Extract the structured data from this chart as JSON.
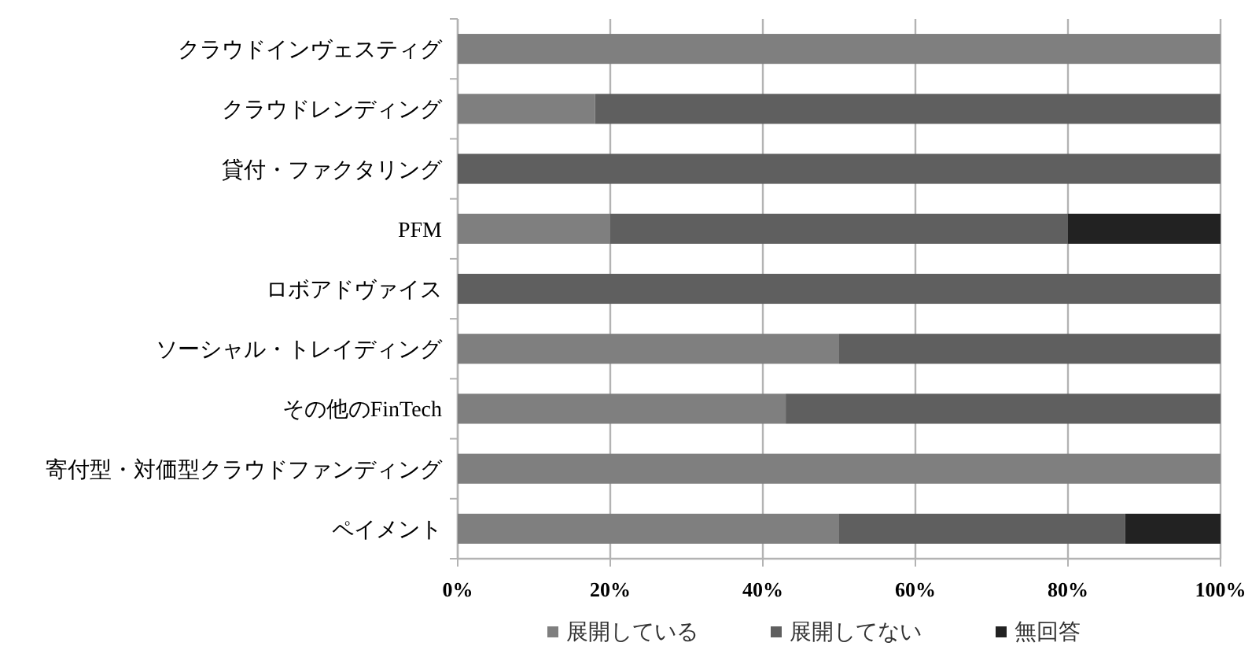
{
  "chart_data": {
    "type": "bar",
    "orientation": "horizontal",
    "stacked": true,
    "categories": [
      "クラウドインヴェスティグ",
      "クラウドレンディング",
      "貸付・ファクタリング",
      "PFM",
      "ロボアドヴァイス",
      "ソーシャル・トレイディング",
      "その他のFinTech",
      "寄付型・対価型クラウドファンディング",
      "ペイメント"
    ],
    "series": [
      {
        "name": "展開している",
        "color": "#7f7f7f",
        "values": [
          100,
          18,
          0,
          20,
          0,
          50,
          43,
          100,
          50
        ]
      },
      {
        "name": "展開してない",
        "color": "#5f5f5f",
        "values": [
          0,
          82,
          100,
          60,
          100,
          50,
          57,
          0,
          37.5
        ]
      },
      {
        "name": "無回答",
        "color": "#222222",
        "values": [
          0,
          0,
          0,
          20,
          0,
          0,
          0,
          0,
          12.5
        ]
      }
    ],
    "xlim": [
      0,
      100
    ],
    "xticks": [
      {
        "value": 0,
        "label": "0%"
      },
      {
        "value": 20,
        "label": "20%"
      },
      {
        "value": 40,
        "label": "40%"
      },
      {
        "value": 60,
        "label": "60%"
      },
      {
        "value": 80,
        "label": "80%"
      },
      {
        "value": 100,
        "label": "100%"
      }
    ],
    "grid": "x",
    "legend": "bottom"
  }
}
